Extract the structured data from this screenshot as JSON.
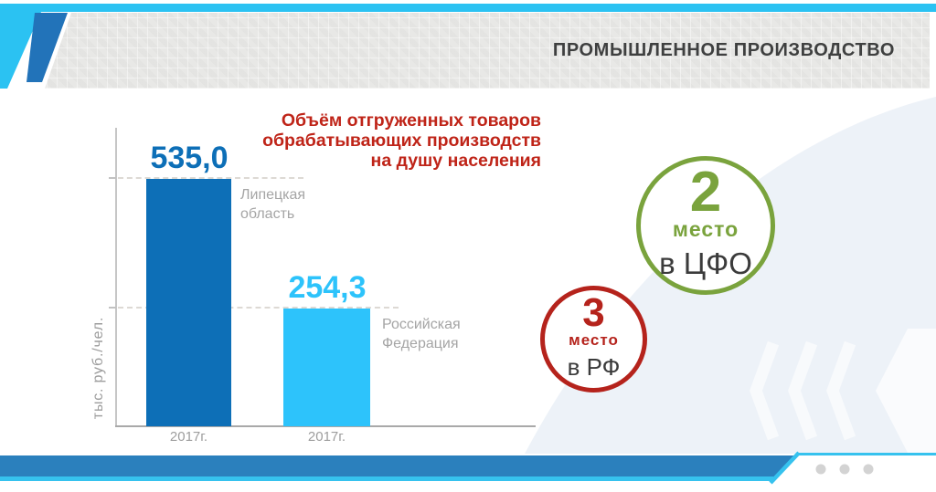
{
  "header": {
    "title": "ПРОМЫШЛЕННОЕ ПРОИЗВОДСТВО"
  },
  "chart": {
    "title": "Объём отгруженных товаров\nобрабатывающих производств\nна душу населения",
    "y_axis_label": "тыс. руб./чел.",
    "bars": [
      {
        "value": "535,0",
        "label": "Липецкая\nобласть",
        "year": "2017г."
      },
      {
        "value": "254,3",
        "label": "Российская\nФедерация",
        "year": "2017г."
      }
    ]
  },
  "chart_data": {
    "type": "bar",
    "title": "Объём отгруженных товаров обрабатывающих производств на душу населения",
    "ylabel": "тыс. руб./чел.",
    "categories": [
      "Липецкая область",
      "Российская Федерация"
    ],
    "x_tick_labels": [
      "2017г.",
      "2017г."
    ],
    "values": [
      535.0,
      254.3
    ],
    "bar_colors": [
      "#0d6fb7",
      "#2dc3fb"
    ],
    "grid": "dashed-at-bar-tops",
    "legend": "none",
    "annotations": [
      "2 место в ЦФО",
      "3 место в РФ"
    ]
  },
  "badges": [
    {
      "rank": "2",
      "word": "место",
      "scope": "в ЦФО",
      "color": "#7aa33d"
    },
    {
      "rank": "3",
      "word": "место",
      "scope": "в РФ",
      "color": "#b5231c"
    }
  ],
  "colors": {
    "accent_cyan": "#2bc2f2",
    "accent_blue": "#2273b9",
    "footer_blue": "#2b80bd",
    "title_red": "#bf2418",
    "header_gray": "#e8e8e6",
    "background_blob": "#edf2f8"
  }
}
